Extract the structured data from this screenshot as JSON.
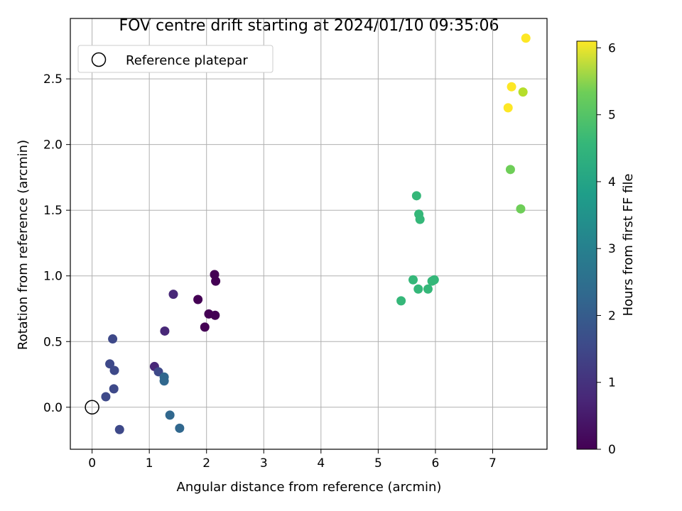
{
  "chart_data": {
    "type": "scatter",
    "title": "FOV centre drift starting at 2024/01/10 09:35:06",
    "xlabel": "Angular distance from reference (arcmin)",
    "ylabel": "Rotation from reference (arcmin)",
    "xlim": [
      -0.38,
      7.95
    ],
    "ylim": [
      -0.32,
      2.96
    ],
    "xticks": [
      0,
      1,
      2,
      3,
      4,
      5,
      6,
      7
    ],
    "xtick_labels": [
      "0",
      "1",
      "2",
      "3",
      "4",
      "5",
      "6",
      "7"
    ],
    "yticks": [
      0.0,
      0.5,
      1.0,
      1.5,
      2.0,
      2.5
    ],
    "ytick_labels": [
      "0.0",
      "0.5",
      "1.0",
      "1.5",
      "2.0",
      "2.5"
    ],
    "grid": true,
    "legend": {
      "placement": "top-left",
      "entries": [
        "Reference platepar"
      ]
    },
    "reference_point": {
      "x": 0,
      "y": 0,
      "marker": "open-circle"
    },
    "colorbar": {
      "label": "Hours from first FF file",
      "colormap": "viridis",
      "range": [
        0,
        6.1
      ],
      "ticks": [
        0,
        1,
        2,
        3,
        4,
        5,
        6
      ],
      "tick_labels": [
        "0",
        "1",
        "2",
        "3",
        "4",
        "5",
        "6"
      ]
    },
    "points": [
      {
        "x": 2.14,
        "y": 1.01,
        "c": 0.05
      },
      {
        "x": 2.16,
        "y": 0.96,
        "c": 0.05
      },
      {
        "x": 1.85,
        "y": 0.82,
        "c": 0.15
      },
      {
        "x": 2.04,
        "y": 0.71,
        "c": 0.1
      },
      {
        "x": 2.15,
        "y": 0.7,
        "c": 0.1
      },
      {
        "x": 1.97,
        "y": 0.61,
        "c": 0.1
      },
      {
        "x": 1.42,
        "y": 0.86,
        "c": 0.5
      },
      {
        "x": 1.27,
        "y": 0.58,
        "c": 0.6
      },
      {
        "x": 1.09,
        "y": 0.31,
        "c": 0.55
      },
      {
        "x": 1.16,
        "y": 0.27,
        "c": 1.6
      },
      {
        "x": 1.26,
        "y": 0.23,
        "c": 1.8
      },
      {
        "x": 1.26,
        "y": 0.2,
        "c": 1.8
      },
      {
        "x": 1.36,
        "y": -0.06,
        "c": 1.7
      },
      {
        "x": 1.53,
        "y": -0.16,
        "c": 1.7
      },
      {
        "x": 0.36,
        "y": 0.52,
        "c": 1.4
      },
      {
        "x": 0.31,
        "y": 0.33,
        "c": 1.3
      },
      {
        "x": 0.39,
        "y": 0.28,
        "c": 1.4
      },
      {
        "x": 0.38,
        "y": 0.14,
        "c": 1.4
      },
      {
        "x": 0.24,
        "y": 0.08,
        "c": 1.4
      },
      {
        "x": 0.48,
        "y": -0.17,
        "c": 1.3
      },
      {
        "x": 5.4,
        "y": 0.81,
        "c": 3.8
      },
      {
        "x": 5.61,
        "y": 0.97,
        "c": 3.9
      },
      {
        "x": 5.7,
        "y": 0.9,
        "c": 3.9
      },
      {
        "x": 5.87,
        "y": 0.9,
        "c": 3.9
      },
      {
        "x": 5.94,
        "y": 0.96,
        "c": 4.0
      },
      {
        "x": 5.98,
        "y": 0.97,
        "c": 4.0
      },
      {
        "x": 5.67,
        "y": 1.61,
        "c": 4.1
      },
      {
        "x": 5.71,
        "y": 1.47,
        "c": 4.1
      },
      {
        "x": 5.73,
        "y": 1.43,
        "c": 4.1
      },
      {
        "x": 7.31,
        "y": 1.81,
        "c": 4.9
      },
      {
        "x": 7.49,
        "y": 1.51,
        "c": 5.0
      },
      {
        "x": 7.53,
        "y": 2.4,
        "c": 5.1
      },
      {
        "x": 7.27,
        "y": 2.28,
        "c": 6.0
      },
      {
        "x": 7.33,
        "y": 2.44,
        "c": 6.0
      },
      {
        "x": 7.58,
        "y": 2.81,
        "c": 6.1
      }
    ]
  }
}
